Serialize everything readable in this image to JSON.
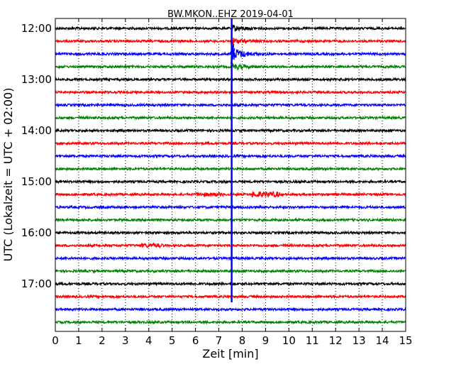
{
  "chart_data": {
    "type": "line",
    "title": "BW.MKON..EHZ 2019-04-01",
    "xlabel": "Zeit  [min]",
    "ylabel": "UTC (Lokalzeit = UTC + 02:00)",
    "xlim": [
      0,
      15
    ],
    "x_ticks": [
      "0",
      "1",
      "2",
      "3",
      "4",
      "5",
      "6",
      "7",
      "8",
      "9",
      "10",
      "11",
      "12",
      "13",
      "14",
      "15"
    ],
    "y_tick_labels": [
      "12:00",
      "13:00",
      "14:00",
      "15:00",
      "16:00",
      "17:00"
    ],
    "trace_start_times": [
      "12:00",
      "12:15",
      "12:30",
      "12:45",
      "13:00",
      "13:15",
      "13:30",
      "13:45",
      "14:00",
      "14:15",
      "14:30",
      "14:45",
      "15:00",
      "15:15",
      "15:30",
      "15:45",
      "16:00",
      "16:15",
      "16:30",
      "16:45",
      "17:00",
      "17:15",
      "17:30",
      "17:45"
    ],
    "trace_colors": [
      "#000000",
      "#ff0000",
      "#0000ff",
      "#008000"
    ],
    "grid": true,
    "event": {
      "minute": 7.55,
      "first_trace": "12:00",
      "last_trace": "17:15",
      "color": "#0000ff"
    }
  }
}
